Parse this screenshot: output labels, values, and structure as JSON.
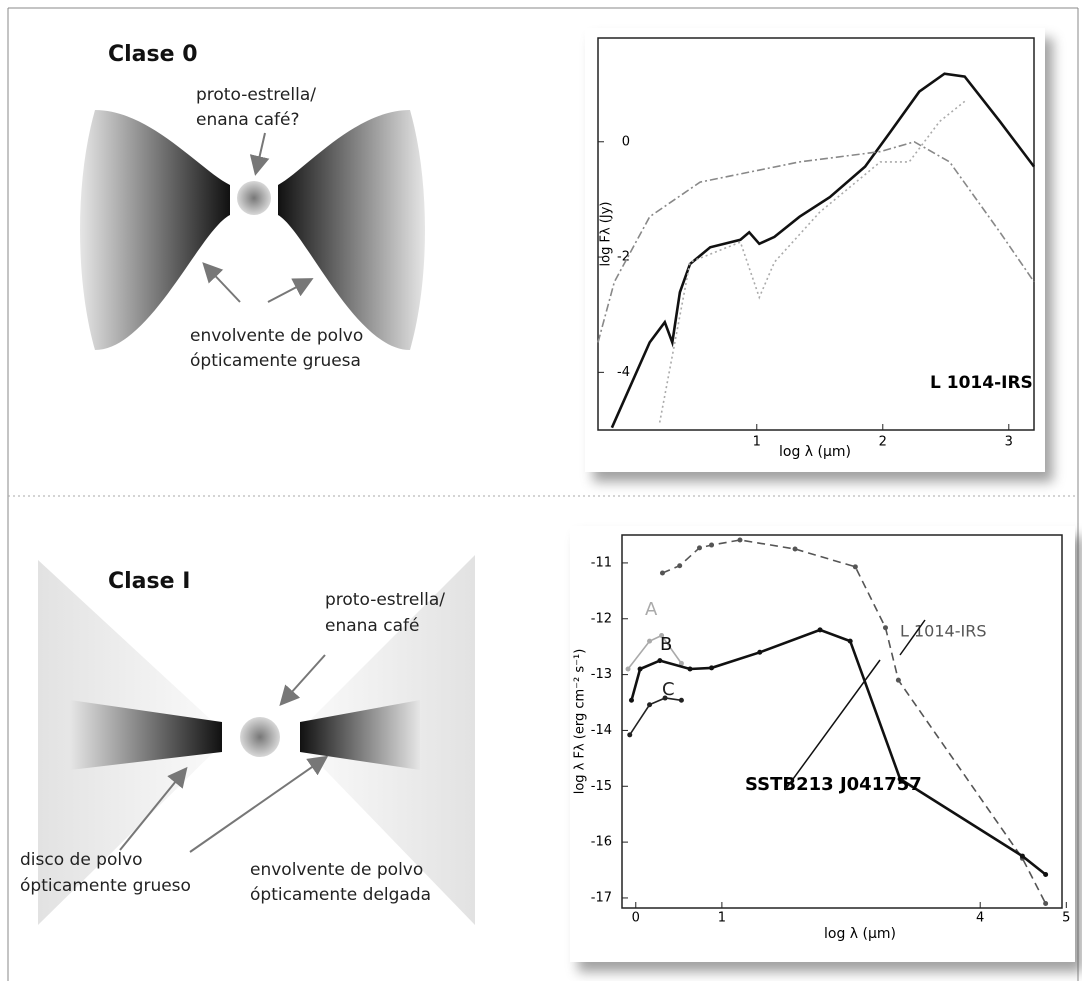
{
  "diagrams": {
    "top": {
      "title": "Clase 0",
      "center_label": [
        "proto-estrella/",
        "enana café?"
      ],
      "envelope_label": [
        "envolvente de polvo",
        "ópticamente gruesa"
      ]
    },
    "bottom": {
      "title": "Clase I",
      "center_label": [
        "proto-estrella/",
        "enana café"
      ],
      "disk_label": [
        "disco de polvo",
        "ópticamente grueso"
      ],
      "envelope_label": [
        "envolvente de polvo",
        "ópticamente delgada"
      ]
    }
  },
  "chart_data": [
    {
      "type": "line",
      "x_label": "log λ (μm)",
      "y_label": "log Fλ (Jy)",
      "annotations": [
        "L 1014-IRS"
      ],
      "xlim": [
        -0.26,
        3.2
      ],
      "ylim": [
        -5,
        1.8
      ],
      "xticks": [
        1,
        2,
        3
      ],
      "yticks": [
        0,
        -2,
        -4
      ],
      "series": [
        {
          "color": "#111111",
          "style": "solid",
          "x": [
            -0.15,
            0.15,
            0.27,
            0.33,
            0.39,
            0.47,
            0.63,
            0.87,
            0.94,
            1.02,
            1.14,
            1.34,
            1.58,
            1.86,
            2.06,
            2.29,
            2.49,
            2.65,
            2.93,
            3.2
          ],
          "values": [
            -4.96,
            -3.48,
            -3.13,
            -3.48,
            -2.61,
            -2.12,
            -1.83,
            -1.7,
            -1.57,
            -1.77,
            -1.65,
            -1.3,
            -0.96,
            -0.43,
            0.17,
            0.87,
            1.18,
            1.13,
            0.35,
            -0.43
          ]
        },
        {
          "color": "#888888",
          "style": "dashdot",
          "x": [
            -0.26,
            -0.13,
            0.15,
            0.55,
            1.34,
            1.98,
            2.25,
            2.53,
            2.93,
            3.2
          ],
          "values": [
            -3.48,
            -2.43,
            -1.3,
            -0.7,
            -0.35,
            -0.17,
            0,
            -0.35,
            -1.57,
            -2.43
          ]
        },
        {
          "color": "#aaaaaa",
          "style": "dotted",
          "x": [
            0.23,
            0.47,
            0.87,
            1.02,
            1.14,
            1.5,
            1.98,
            2.21,
            2.45,
            2.65
          ],
          "values": [
            -4.87,
            -2.09,
            -1.74,
            -2.7,
            -2.09,
            -1.22,
            -0.35,
            -0.35,
            0.35,
            0.7
          ]
        }
      ]
    },
    {
      "type": "line",
      "x_label": "log λ (μm)",
      "y_label": "log λ Fλ (erg cm⁻² s⁻¹)",
      "annotations": [
        "SSTB213 J041757"
      ],
      "xlim": [
        -0.16,
        4.95
      ],
      "ylim": [
        -17.18,
        -10.5
      ],
      "xticks": [
        0,
        1,
        4,
        5
      ],
      "yticks": [
        -11,
        -12,
        -13,
        -14,
        -15,
        -16,
        -17
      ],
      "series": [
        {
          "name": "L 1014-IRS",
          "color": "#555555",
          "style": "dashed",
          "x": [
            0.31,
            0.51,
            0.74,
            0.88,
            1.21,
            1.85,
            2.55,
            2.9,
            3.05,
            4.49,
            4.76
          ],
          "values": [
            -11.18,
            -11.05,
            -10.73,
            -10.68,
            -10.59,
            -10.75,
            -11.07,
            -12.16,
            -13.1,
            -16.29,
            -17.1
          ]
        },
        {
          "name": "A",
          "color": "#aaaaaa",
          "style": "solid",
          "x": [
            -0.09,
            0.16,
            0.3,
            0.53
          ],
          "values": [
            -12.9,
            -12.4,
            -12.3,
            -12.8
          ]
        },
        {
          "name": "B",
          "color": "#111111",
          "style": "solid",
          "x": [
            -0.05,
            0.05,
            0.28,
            0.63,
            0.88,
            1.44,
            2.14,
            2.49,
            3.07,
            4.49,
            4.76
          ],
          "values": [
            -13.46,
            -12.9,
            -12.75,
            -12.9,
            -12.88,
            -12.6,
            -12.2,
            -12.4,
            -14.87,
            -16.25,
            -16.58
          ]
        },
        {
          "name": "C",
          "color": "#222222",
          "style": "solid",
          "x": [
            -0.07,
            0.16,
            0.34,
            0.53
          ],
          "values": [
            -14.08,
            -13.54,
            -13.42,
            -13.46
          ]
        }
      ]
    }
  ]
}
